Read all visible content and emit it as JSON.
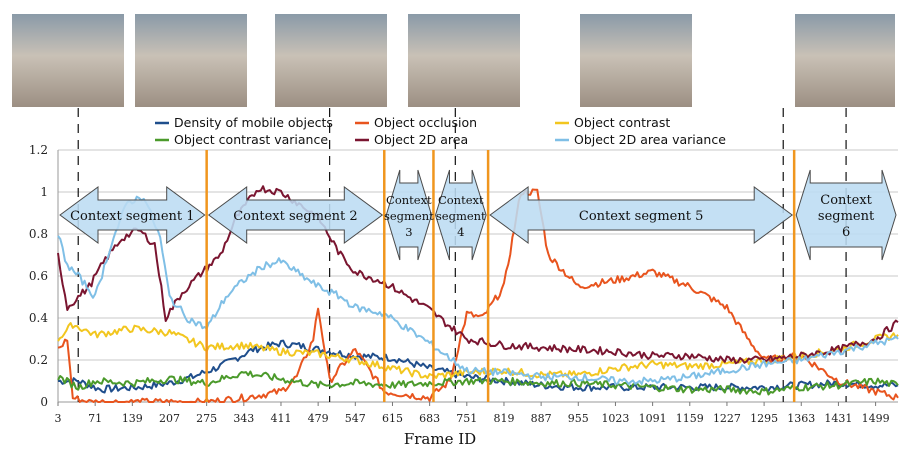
{
  "chart_data": {
    "type": "line",
    "xlabel": "Frame ID",
    "ylabel": "",
    "ylim": [
      0,
      1.2
    ],
    "xlim": [
      3,
      1540
    ],
    "x_tick_labels": [
      "3",
      "71",
      "139",
      "207",
      "275",
      "343",
      "411",
      "479",
      "547",
      "615",
      "683",
      "751",
      "819",
      "887",
      "955",
      "1023",
      "1091",
      "1159",
      "1227",
      "1295",
      "1363",
      "1431",
      "1499"
    ],
    "y_tick_labels": [
      "0",
      "0.2",
      "0.4",
      "0.6",
      "0.8",
      "1",
      "1.2"
    ],
    "grid": true,
    "legend_placement": "top-center",
    "series": [
      {
        "name": "Density of mobile objects",
        "color": "#1f4e8c",
        "points": [
          [
            3,
            0.1
          ],
          [
            40,
            0.1
          ],
          [
            80,
            0.06
          ],
          [
            150,
            0.07
          ],
          [
            207,
            0.09
          ],
          [
            250,
            0.12
          ],
          [
            300,
            0.17
          ],
          [
            360,
            0.25
          ],
          [
            411,
            0.28
          ],
          [
            440,
            0.27
          ],
          [
            479,
            0.25
          ],
          [
            547,
            0.22
          ],
          [
            615,
            0.21
          ],
          [
            683,
            0.16
          ],
          [
            751,
            0.12
          ],
          [
            819,
            0.1
          ],
          [
            887,
            0.08
          ],
          [
            955,
            0.07
          ],
          [
            1023,
            0.07
          ],
          [
            1091,
            0.07
          ],
          [
            1159,
            0.07
          ],
          [
            1227,
            0.07
          ],
          [
            1295,
            0.07
          ],
          [
            1363,
            0.08
          ],
          [
            1431,
            0.09
          ],
          [
            1499,
            0.08
          ],
          [
            1540,
            0.08
          ]
        ]
      },
      {
        "name": "Object occlusion",
        "color": "#e8541e",
        "points": [
          [
            3,
            0.25
          ],
          [
            20,
            0.3
          ],
          [
            30,
            0.02
          ],
          [
            60,
            0
          ],
          [
            275,
            0
          ],
          [
            343,
            0.02
          ],
          [
            411,
            0.05
          ],
          [
            440,
            0.12
          ],
          [
            470,
            0.3
          ],
          [
            479,
            0.45
          ],
          [
            500,
            0.1
          ],
          [
            547,
            0.25
          ],
          [
            600,
            0.05
          ],
          [
            683,
            0.02
          ],
          [
            720,
            0.1
          ],
          [
            751,
            0.42
          ],
          [
            780,
            0.4
          ],
          [
            819,
            0.55
          ],
          [
            850,
            1.0
          ],
          [
            880,
            1.0
          ],
          [
            900,
            0.7
          ],
          [
            955,
            0.55
          ],
          [
            1023,
            0.58
          ],
          [
            1091,
            0.62
          ],
          [
            1159,
            0.55
          ],
          [
            1227,
            0.45
          ],
          [
            1260,
            0.32
          ],
          [
            1295,
            0.2
          ],
          [
            1363,
            0.22
          ],
          [
            1431,
            0.1
          ],
          [
            1499,
            0.05
          ],
          [
            1540,
            0.02
          ]
        ]
      },
      {
        "name": "Object contrast",
        "color": "#f2c61f",
        "points": [
          [
            3,
            0.3
          ],
          [
            30,
            0.37
          ],
          [
            71,
            0.32
          ],
          [
            139,
            0.35
          ],
          [
            207,
            0.33
          ],
          [
            275,
            0.26
          ],
          [
            343,
            0.27
          ],
          [
            411,
            0.24
          ],
          [
            479,
            0.23
          ],
          [
            547,
            0.2
          ],
          [
            615,
            0.16
          ],
          [
            683,
            0.12
          ],
          [
            751,
            0.14
          ],
          [
            819,
            0.15
          ],
          [
            887,
            0.13
          ],
          [
            955,
            0.13
          ],
          [
            1023,
            0.16
          ],
          [
            1091,
            0.18
          ],
          [
            1159,
            0.17
          ],
          [
            1227,
            0.18
          ],
          [
            1295,
            0.2
          ],
          [
            1363,
            0.22
          ],
          [
            1431,
            0.25
          ],
          [
            1499,
            0.3
          ],
          [
            1540,
            0.32
          ]
        ]
      },
      {
        "name": "Object contrast variance",
        "color": "#4b9a2b",
        "points": [
          [
            3,
            0.12
          ],
          [
            40,
            0.07
          ],
          [
            71,
            0.1
          ],
          [
            139,
            0.09
          ],
          [
            207,
            0.11
          ],
          [
            275,
            0.09
          ],
          [
            343,
            0.14
          ],
          [
            411,
            0.11
          ],
          [
            479,
            0.08
          ],
          [
            547,
            0.09
          ],
          [
            615,
            0.08
          ],
          [
            683,
            0.09
          ],
          [
            751,
            0.1
          ],
          [
            819,
            0.1
          ],
          [
            887,
            0.09
          ],
          [
            955,
            0.09
          ],
          [
            1023,
            0.08
          ],
          [
            1091,
            0.07
          ],
          [
            1159,
            0.06
          ],
          [
            1227,
            0.06
          ],
          [
            1295,
            0.05
          ],
          [
            1363,
            0.07
          ],
          [
            1431,
            0.08
          ],
          [
            1499,
            0.1
          ],
          [
            1540,
            0.08
          ]
        ]
      },
      {
        "name": "Object 2D area",
        "color": "#7a1530",
        "points": [
          [
            3,
            0.7
          ],
          [
            20,
            0.45
          ],
          [
            40,
            0.5
          ],
          [
            60,
            0.55
          ],
          [
            90,
            0.68
          ],
          [
            120,
            0.78
          ],
          [
            150,
            0.82
          ],
          [
            180,
            0.75
          ],
          [
            200,
            0.4
          ],
          [
            230,
            0.52
          ],
          [
            260,
            0.6
          ],
          [
            300,
            0.7
          ],
          [
            330,
            0.88
          ],
          [
            370,
            1.02
          ],
          [
            411,
            1.0
          ],
          [
            440,
            0.95
          ],
          [
            479,
            0.88
          ],
          [
            520,
            0.7
          ],
          [
            547,
            0.62
          ],
          [
            600,
            0.57
          ],
          [
            683,
            0.44
          ],
          [
            720,
            0.36
          ],
          [
            751,
            0.3
          ],
          [
            819,
            0.27
          ],
          [
            887,
            0.26
          ],
          [
            955,
            0.25
          ],
          [
            1023,
            0.24
          ],
          [
            1091,
            0.22
          ],
          [
            1159,
            0.22
          ],
          [
            1227,
            0.2
          ],
          [
            1295,
            0.2
          ],
          [
            1363,
            0.22
          ],
          [
            1431,
            0.25
          ],
          [
            1499,
            0.3
          ],
          [
            1540,
            0.38
          ]
        ]
      },
      {
        "name": "Object 2D area variance",
        "color": "#7fbfe6",
        "points": [
          [
            3,
            0.8
          ],
          [
            20,
            0.65
          ],
          [
            40,
            0.6
          ],
          [
            71,
            0.5
          ],
          [
            100,
            0.75
          ],
          [
            130,
            0.95
          ],
          [
            160,
            0.98
          ],
          [
            190,
            0.78
          ],
          [
            207,
            0.5
          ],
          [
            240,
            0.4
          ],
          [
            275,
            0.35
          ],
          [
            310,
            0.5
          ],
          [
            343,
            0.58
          ],
          [
            380,
            0.65
          ],
          [
            411,
            0.67
          ],
          [
            450,
            0.6
          ],
          [
            479,
            0.55
          ],
          [
            520,
            0.5
          ],
          [
            547,
            0.45
          ],
          [
            600,
            0.42
          ],
          [
            683,
            0.28
          ],
          [
            751,
            0.15
          ],
          [
            819,
            0.14
          ],
          [
            887,
            0.12
          ],
          [
            955,
            0.12
          ],
          [
            1023,
            0.1
          ],
          [
            1091,
            0.1
          ],
          [
            1159,
            0.12
          ],
          [
            1227,
            0.15
          ],
          [
            1295,
            0.18
          ],
          [
            1363,
            0.2
          ],
          [
            1431,
            0.24
          ],
          [
            1499,
            0.28
          ],
          [
            1540,
            0.3
          ]
        ]
      }
    ],
    "segment_boundaries": [
      275,
      600,
      690,
      790,
      1350
    ],
    "camera_frame_markers": [
      40,
      500,
      730,
      1330,
      1445
    ],
    "context_segments": [
      {
        "lines": [
          "Context segment 1"
        ]
      },
      {
        "lines": [
          "Context segment 2"
        ]
      },
      {
        "lines": [
          "Context",
          "segment",
          "3"
        ]
      },
      {
        "lines": [
          "Context",
          "segment",
          "4"
        ]
      },
      {
        "lines": [
          "Context segment 5"
        ]
      },
      {
        "lines": [
          "Context",
          "segment",
          "6"
        ]
      }
    ]
  }
}
